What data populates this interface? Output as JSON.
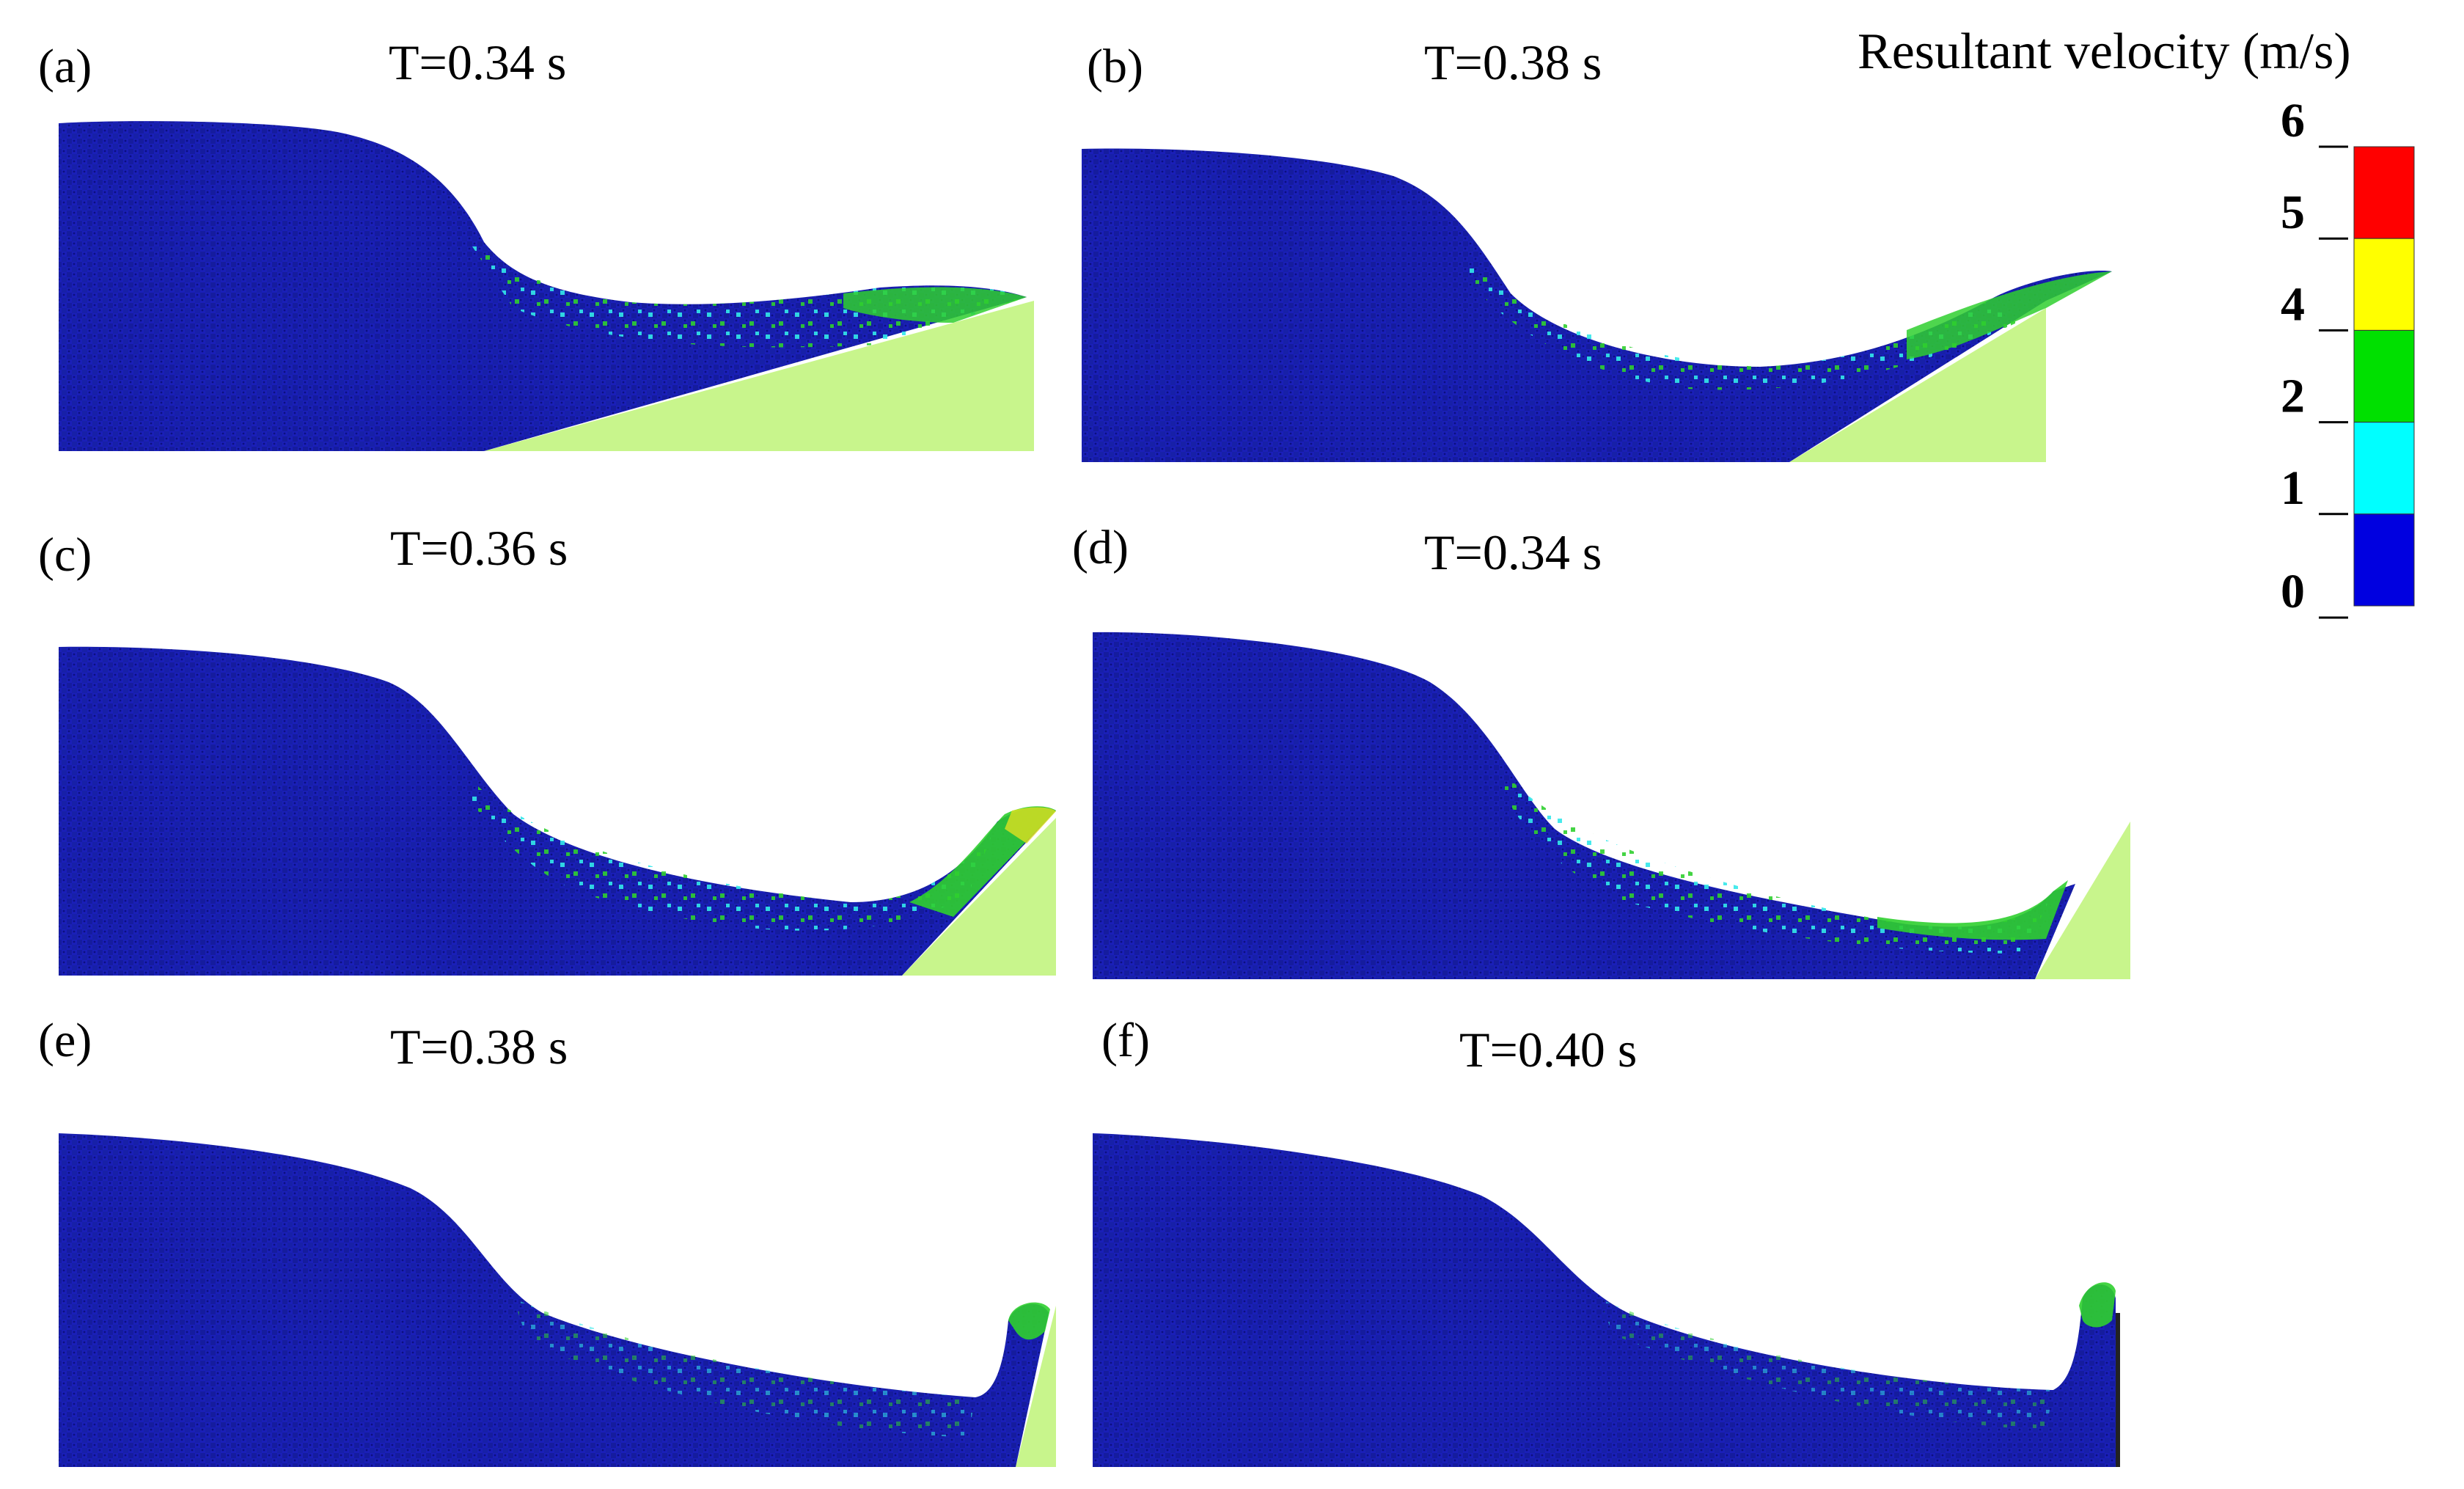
{
  "colors": {
    "particles_slow": "#1a1fb8",
    "particles_slow_dark": "#0f138f",
    "cyan": "#33e8ea",
    "green": "#2fcf2f",
    "yellow": "#ffff00",
    "red": "#ff0000",
    "ramp": "#c8f58c"
  },
  "legend": {
    "title": "Resultant velocity (m/s)",
    "bins": [
      {
        "from": "5",
        "to": "6",
        "color": "#ff0000"
      },
      {
        "from": "4",
        "to": "5",
        "color": "#ffff00"
      },
      {
        "from": "2",
        "to": "4",
        "color": "#00e000"
      },
      {
        "from": "1",
        "to": "2",
        "color": "#00ffff"
      },
      {
        "from": "0",
        "to": "1",
        "color": "#0000e0"
      }
    ],
    "tick_labels": [
      "6",
      "5",
      "4",
      "2",
      "1",
      "0"
    ]
  },
  "panels": [
    {
      "id": "a",
      "label": "(a)",
      "time": "T=0.34 s",
      "ramp_slope": "gentle"
    },
    {
      "id": "b",
      "label": "(b)",
      "time": "T=0.38 s",
      "ramp_slope": "medium"
    },
    {
      "id": "c",
      "label": "(c)",
      "time": "T=0.36 s",
      "ramp_slope": "steep"
    },
    {
      "id": "d",
      "label": "(d)",
      "time": "T=0.34 s",
      "ramp_slope": "steeper"
    },
    {
      "id": "e",
      "label": "(e)",
      "time": "T=0.38 s",
      "ramp_slope": "very steep"
    },
    {
      "id": "f",
      "label": "(f)",
      "time": "T=0.40 s",
      "ramp_slope": "vertical"
    }
  ]
}
